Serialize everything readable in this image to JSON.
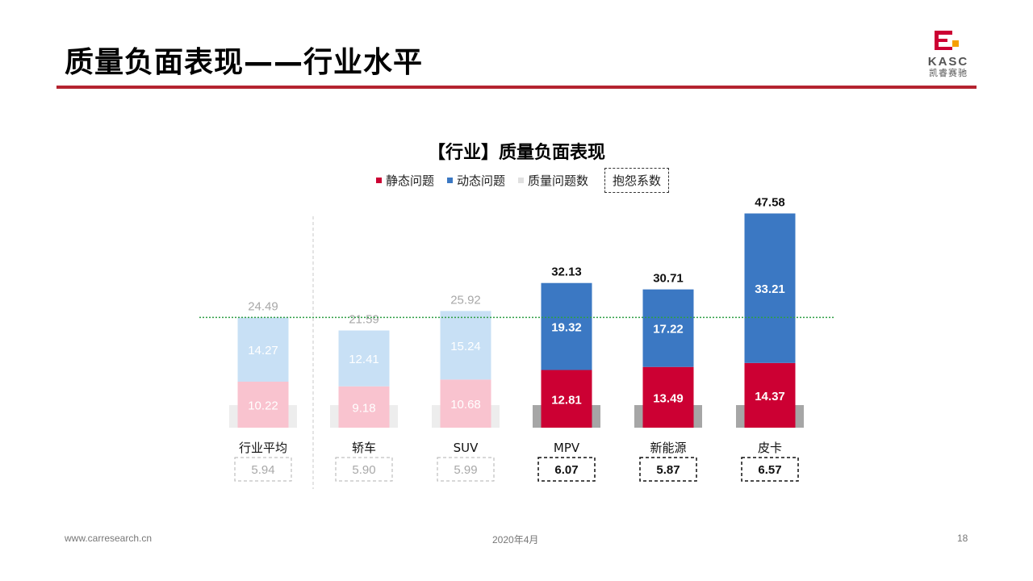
{
  "slide": {
    "title": "质量负面表现——行业水平",
    "logo_text": "KASC",
    "logo_sub": "凯睿赛驰"
  },
  "legend": {
    "static": "静态问题",
    "dynamic": "动态问题",
    "count": "质量问题数",
    "coef": "抱怨系数"
  },
  "colors": {
    "static": "#cc0033",
    "dynamic": "#3b78c3",
    "static_faded": "#f9c3cf",
    "dynamic_faded": "#c8e0f5",
    "grey": "#a6a6a6",
    "grey_faded": "#ededed",
    "reference_line": "#2e9e44"
  },
  "chart_data": {
    "type": "bar",
    "title": "【行业】质量负面表现",
    "categories": [
      "行业平均",
      "轿车",
      "SUV",
      "MPV",
      "新能源",
      "皮卡"
    ],
    "series": [
      {
        "name": "静态问题",
        "values": [
          10.22,
          9.18,
          10.68,
          12.81,
          13.49,
          14.37
        ]
      },
      {
        "name": "动态问题",
        "values": [
          14.27,
          12.41,
          15.24,
          19.32,
          17.22,
          33.21
        ]
      }
    ],
    "totals": [
      "24.49",
      "21.59",
      "25.92",
      "32.13",
      "30.71",
      "47.58"
    ],
    "complaint_coefficient": [
      "5.94",
      "5.90",
      "5.99",
      "6.07",
      "5.87",
      "6.57"
    ],
    "highlighted": [
      false,
      false,
      false,
      true,
      true,
      true
    ],
    "reference_line_value": 24.49,
    "stacked": true
  },
  "footer": {
    "website": "www.carresearch.cn",
    "date": "2020年4月",
    "page": "18"
  }
}
